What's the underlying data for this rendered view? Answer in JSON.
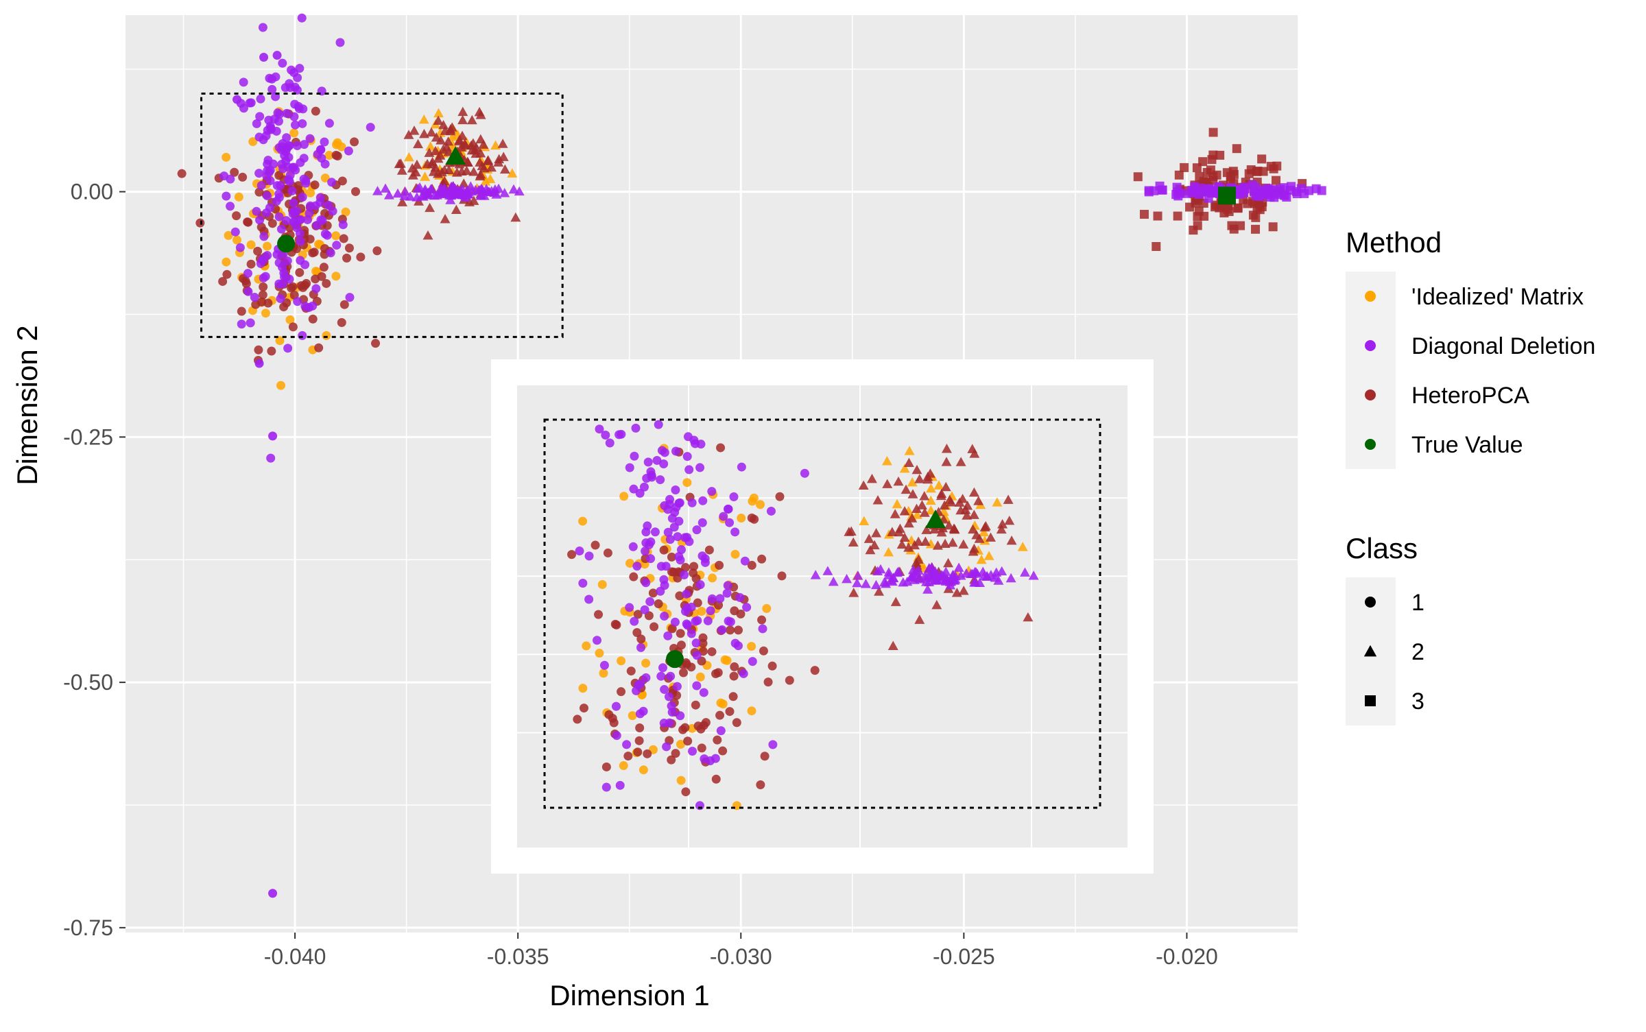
{
  "chart_data": {
    "type": "scatter",
    "title": "",
    "xlabel": "Dimension 1",
    "ylabel": "Dimension 2",
    "xlim": [
      -0.0438,
      -0.0175
    ],
    "ylim": [
      -0.755,
      0.18
    ],
    "xticks": [
      -0.04,
      -0.035,
      -0.03,
      -0.025,
      -0.02
    ],
    "xtick_labels": [
      "-0.040",
      "-0.035",
      "-0.030",
      "-0.025",
      "-0.020"
    ],
    "yticks": [
      0.0,
      -0.25,
      -0.5,
      -0.75
    ],
    "ytick_labels": [
      "0.00",
      "-0.25",
      "-0.50",
      "-0.75"
    ],
    "grid": true,
    "legend_position": "right",
    "method_legend": {
      "title": "Method",
      "items": [
        {
          "label": "'Idealized' Matrix",
          "color": "#FFA500"
        },
        {
          "label": "Diagonal Deletion",
          "color": "#A020F0"
        },
        {
          "label": "HeteroPCA",
          "color": "#A52A2A"
        },
        {
          "label": "True Value",
          "color": "#006400"
        }
      ]
    },
    "class_legend": {
      "title": "Class",
      "items": [
        {
          "label": "1",
          "shape": "circle"
        },
        {
          "label": "2",
          "shape": "triangle"
        },
        {
          "label": "3",
          "shape": "square"
        }
      ]
    },
    "true_values": [
      {
        "class": "1",
        "x": -0.0402,
        "y": -0.053
      },
      {
        "class": "2",
        "x": -0.0364,
        "y": 0.036
      },
      {
        "class": "3",
        "x": -0.0191,
        "y": -0.004
      }
    ],
    "clusters": [
      {
        "method": "'Idealized' Matrix",
        "class": "1",
        "center_x": -0.0401,
        "center_y": -0.04,
        "spread_x": 0.0007,
        "spread_y": 0.06,
        "n": 70
      },
      {
        "method": "HeteroPCA",
        "class": "1",
        "center_x": -0.0401,
        "center_y": -0.045,
        "spread_x": 0.0007,
        "spread_y": 0.055,
        "n": 140
      },
      {
        "method": "Diagonal Deletion",
        "class": "1",
        "center_x": -0.0402,
        "center_y": 0.01,
        "spread_x": 0.0006,
        "spread_y": 0.07,
        "n": 180
      },
      {
        "method": "'Idealized' Matrix",
        "class": "2",
        "center_x": -0.0364,
        "center_y": 0.03,
        "spread_x": 0.0006,
        "spread_y": 0.02,
        "n": 40
      },
      {
        "method": "HeteroPCA",
        "class": "2",
        "center_x": -0.0364,
        "center_y": 0.03,
        "spread_x": 0.0006,
        "spread_y": 0.022,
        "n": 110
      },
      {
        "method": "Diagonal Deletion",
        "class": "2",
        "center_x": -0.0364,
        "center_y": 0.0,
        "spread_x": 0.0006,
        "spread_y": 0.003,
        "n": 90
      },
      {
        "method": "HeteroPCA",
        "class": "3",
        "center_x": -0.0191,
        "center_y": -0.005,
        "spread_x": 0.0007,
        "spread_y": 0.02,
        "n": 110
      },
      {
        "method": "Diagonal Deletion",
        "class": "3",
        "center_x": -0.0191,
        "center_y": 0.0,
        "spread_x": 0.0009,
        "spread_y": 0.003,
        "n": 90
      }
    ],
    "outliers": [
      {
        "method": "Diagonal Deletion",
        "class": "1",
        "x": -0.0405,
        "y": -0.715
      },
      {
        "method": "Diagonal Deletion",
        "class": "1",
        "x": -0.0405,
        "y": -0.249
      },
      {
        "method": "Diagonal Deletion",
        "class": "1",
        "x": -0.0408,
        "y": -0.175
      },
      {
        "method": "Diagonal Deletion",
        "class": "1",
        "x": -0.0407,
        "y": 0.137
      },
      {
        "method": "Diagonal Deletion",
        "class": "1",
        "x": -0.0404,
        "y": 0.139
      },
      {
        "method": "Diagonal Deletion",
        "class": "1",
        "x": -0.0413,
        "y": 0.094
      }
    ],
    "zoom_regions": [
      {
        "x_range": [
          -0.0421,
          -0.034
        ],
        "y_range": [
          -0.148,
          0.1
        ],
        "inset_x_range": [
          -0.0338,
          -0.0212
        ],
        "inset_y_range": [
          -0.64,
          -0.215
        ]
      }
    ]
  }
}
